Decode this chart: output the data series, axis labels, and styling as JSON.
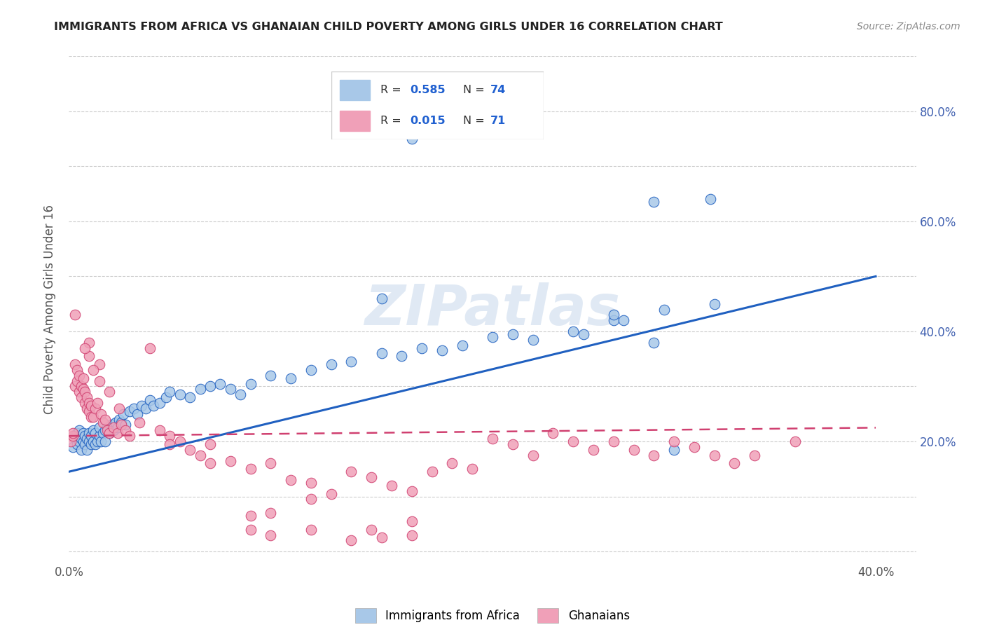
{
  "title": "IMMIGRANTS FROM AFRICA VS GHANAIAN CHILD POVERTY AMONG GIRLS UNDER 16 CORRELATION CHART",
  "source": "Source: ZipAtlas.com",
  "ylabel": "Child Poverty Among Girls Under 16",
  "xlim": [
    0.0,
    0.42
  ],
  "ylim": [
    -0.02,
    0.9
  ],
  "xtick_positions": [
    0.0,
    0.05,
    0.1,
    0.15,
    0.2,
    0.25,
    0.3,
    0.35,
    0.4
  ],
  "xticklabels": [
    "0.0%",
    "",
    "",
    "",
    "",
    "",
    "",
    "",
    "40.0%"
  ],
  "ytick_positions": [
    0.0,
    0.1,
    0.2,
    0.3,
    0.4,
    0.5,
    0.6,
    0.7,
    0.8,
    0.9
  ],
  "yticks_right_vals": [
    0.2,
    0.4,
    0.6,
    0.8
  ],
  "yticks_right_labels": [
    "20.0%",
    "40.0%",
    "60.0%",
    "80.0%"
  ],
  "color_blue": "#a8c8e8",
  "color_blue_line": "#2060c0",
  "color_pink": "#f0a0b8",
  "color_pink_line": "#d04070",
  "watermark": "ZIPatlas",
  "blue_scatter_x": [
    0.002,
    0.003,
    0.004,
    0.004,
    0.005,
    0.005,
    0.006,
    0.006,
    0.007,
    0.007,
    0.008,
    0.008,
    0.009,
    0.009,
    0.01,
    0.01,
    0.011,
    0.011,
    0.012,
    0.012,
    0.013,
    0.013,
    0.014,
    0.015,
    0.015,
    0.016,
    0.017,
    0.018,
    0.018,
    0.019,
    0.02,
    0.021,
    0.022,
    0.023,
    0.024,
    0.025,
    0.026,
    0.027,
    0.028,
    0.03,
    0.032,
    0.034,
    0.036,
    0.038,
    0.04,
    0.042,
    0.045,
    0.048,
    0.05,
    0.055,
    0.06,
    0.065,
    0.07,
    0.075,
    0.08,
    0.085,
    0.09,
    0.1,
    0.11,
    0.12,
    0.13,
    0.14,
    0.155,
    0.165,
    0.175,
    0.185,
    0.195,
    0.21,
    0.22,
    0.23,
    0.25,
    0.27,
    0.295,
    0.32
  ],
  "blue_scatter_y": [
    0.19,
    0.21,
    0.195,
    0.215,
    0.2,
    0.22,
    0.205,
    0.185,
    0.2,
    0.215,
    0.195,
    0.21,
    0.185,
    0.205,
    0.2,
    0.215,
    0.195,
    0.21,
    0.2,
    0.22,
    0.195,
    0.215,
    0.2,
    0.21,
    0.225,
    0.2,
    0.215,
    0.22,
    0.2,
    0.225,
    0.215,
    0.23,
    0.22,
    0.235,
    0.225,
    0.24,
    0.235,
    0.25,
    0.23,
    0.255,
    0.26,
    0.25,
    0.265,
    0.26,
    0.275,
    0.265,
    0.27,
    0.28,
    0.29,
    0.285,
    0.28,
    0.295,
    0.3,
    0.305,
    0.295,
    0.285,
    0.305,
    0.32,
    0.315,
    0.33,
    0.34,
    0.345,
    0.36,
    0.355,
    0.37,
    0.365,
    0.375,
    0.39,
    0.395,
    0.385,
    0.4,
    0.42,
    0.44,
    0.45
  ],
  "extra_blue_points": [
    [
      0.155,
      0.46
    ],
    [
      0.275,
      0.42
    ],
    [
      0.27,
      0.43
    ],
    [
      0.255,
      0.395
    ],
    [
      0.29,
      0.38
    ],
    [
      0.17,
      0.75
    ],
    [
      0.29,
      0.635
    ],
    [
      0.318,
      0.64
    ],
    [
      0.3,
      0.185
    ]
  ],
  "pink_scatter_x": [
    0.001,
    0.002,
    0.002,
    0.003,
    0.003,
    0.004,
    0.004,
    0.005,
    0.005,
    0.006,
    0.006,
    0.007,
    0.007,
    0.008,
    0.008,
    0.009,
    0.009,
    0.01,
    0.01,
    0.011,
    0.011,
    0.012,
    0.013,
    0.014,
    0.015,
    0.016,
    0.017,
    0.018,
    0.019,
    0.02,
    0.022,
    0.024,
    0.026,
    0.028,
    0.03,
    0.035,
    0.04,
    0.045,
    0.05,
    0.055,
    0.06,
    0.065,
    0.07,
    0.08,
    0.09,
    0.1,
    0.11,
    0.12,
    0.13,
    0.14,
    0.15,
    0.16,
    0.17,
    0.18,
    0.19,
    0.2,
    0.21,
    0.22,
    0.23,
    0.24,
    0.25,
    0.26,
    0.27,
    0.28,
    0.29,
    0.3,
    0.31,
    0.32,
    0.33,
    0.34,
    0.36
  ],
  "pink_scatter_y": [
    0.2,
    0.21,
    0.215,
    0.3,
    0.34,
    0.31,
    0.33,
    0.29,
    0.32,
    0.28,
    0.3,
    0.295,
    0.315,
    0.27,
    0.29,
    0.26,
    0.28,
    0.255,
    0.27,
    0.245,
    0.265,
    0.245,
    0.26,
    0.27,
    0.34,
    0.25,
    0.235,
    0.24,
    0.22,
    0.215,
    0.225,
    0.215,
    0.23,
    0.22,
    0.21,
    0.235,
    0.37,
    0.22,
    0.21,
    0.2,
    0.185,
    0.175,
    0.16,
    0.165,
    0.15,
    0.16,
    0.13,
    0.125,
    0.105,
    0.145,
    0.135,
    0.12,
    0.11,
    0.145,
    0.16,
    0.15,
    0.205,
    0.195,
    0.175,
    0.215,
    0.2,
    0.185,
    0.2,
    0.185,
    0.175,
    0.2,
    0.19,
    0.175,
    0.16,
    0.175,
    0.2
  ],
  "extra_pink_points": [
    [
      0.003,
      0.43
    ],
    [
      0.01,
      0.38
    ],
    [
      0.01,
      0.355
    ],
    [
      0.012,
      0.33
    ],
    [
      0.015,
      0.31
    ],
    [
      0.02,
      0.29
    ],
    [
      0.008,
      0.37
    ],
    [
      0.025,
      0.26
    ],
    [
      0.05,
      0.195
    ],
    [
      0.07,
      0.195
    ],
    [
      0.09,
      0.065
    ],
    [
      0.09,
      0.04
    ],
    [
      0.1,
      0.03
    ],
    [
      0.1,
      0.07
    ],
    [
      0.12,
      0.04
    ],
    [
      0.12,
      0.095
    ],
    [
      0.14,
      0.02
    ],
    [
      0.15,
      0.04
    ],
    [
      0.155,
      0.025
    ],
    [
      0.17,
      0.055
    ],
    [
      0.17,
      0.03
    ]
  ],
  "blue_line_x": [
    0.0,
    0.4
  ],
  "blue_line_y": [
    0.145,
    0.5
  ],
  "pink_line_x": [
    0.0,
    0.4
  ],
  "pink_line_y": [
    0.21,
    0.225
  ],
  "legend_r1": "0.585",
  "legend_n1": "74",
  "legend_r2": "0.015",
  "legend_n2": "71"
}
